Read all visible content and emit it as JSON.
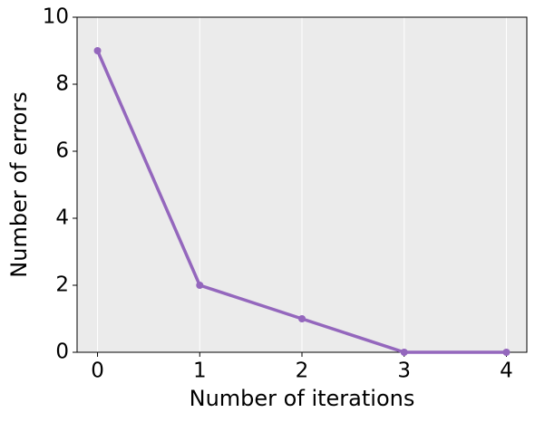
{
  "chart_data": {
    "type": "line",
    "x_label": "Number of iterations",
    "y_label": "Number of errors",
    "x": [
      0,
      1,
      2,
      3,
      4
    ],
    "series": [
      {
        "color": "#9467bd",
        "values": [
          9,
          2,
          1,
          0,
          0
        ]
      }
    ],
    "xlim": [
      -0.2,
      4.2
    ],
    "xticks": [
      0,
      1,
      2,
      3,
      4
    ],
    "ylim": [
      0,
      10
    ],
    "yticks": [
      0,
      2,
      4,
      6,
      8,
      10
    ],
    "grid": "x",
    "background": "#ebebeb"
  }
}
